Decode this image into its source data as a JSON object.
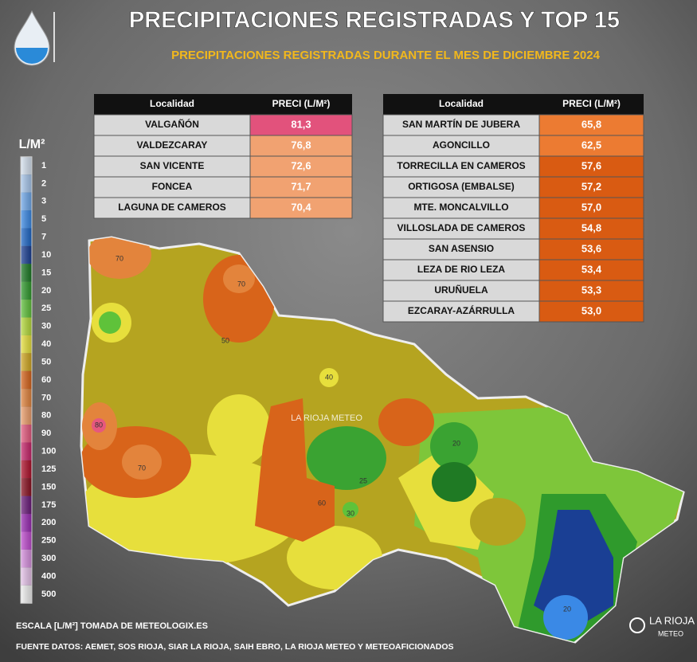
{
  "header": {
    "title": "PRECIPITACIONES REGISTRADAS Y TOP 15",
    "subtitle": "PRECIPITACIONES REGISTRADAS DURANTE EL MES DE DICIEMBRE 2024"
  },
  "table_left": {
    "columns": [
      "Localidad",
      "PRECI (L/M²)"
    ],
    "rows": [
      [
        "VALGAÑÓN",
        "81,3"
      ],
      [
        "VALDEZCARAY",
        "76,8"
      ],
      [
        "SAN VICENTE",
        "72,6"
      ],
      [
        "FONCEA",
        "71,7"
      ],
      [
        "LAGUNA DE CAMEROS",
        "70,4"
      ]
    ],
    "colors": [
      "#e2527c",
      "#f1a271",
      "#f1a271",
      "#f1a271",
      "#f1a271"
    ]
  },
  "table_right": {
    "columns": [
      "Localidad",
      "PRECI (L/M²)"
    ],
    "rows": [
      [
        "SAN MARTÍN DE JUBERA",
        "65,8"
      ],
      [
        "AGONCILLO",
        "62,5"
      ],
      [
        "TORRECILLA EN CAMEROS",
        "57,6"
      ],
      [
        "ORTIGOSA (EMBALSE)",
        "57,2"
      ],
      [
        "MTE. MONCALVILLO",
        "57,0"
      ],
      [
        "VILLOSLADA DE CAMEROS",
        "54,8"
      ],
      [
        "SAN ASENSIO",
        "53,6"
      ],
      [
        "LEZA DE RIO LEZA",
        "53,4"
      ],
      [
        "URUÑUELA",
        "53,3"
      ],
      [
        "EZCARAY-AZÁRRULLA",
        "53,0"
      ]
    ],
    "colors": [
      "#ec7b32",
      "#ec7b32",
      "#d95b12",
      "#d95b12",
      "#d95b12",
      "#d95b12",
      "#d95b12",
      "#d95b12",
      "#d95b12",
      "#d95b12"
    ]
  },
  "scale": {
    "title": "L/M²",
    "levels": [
      1,
      2,
      3,
      5,
      7,
      10,
      15,
      20,
      25,
      30,
      40,
      50,
      60,
      70,
      80,
      90,
      100,
      125,
      150,
      175,
      200,
      250,
      300,
      400,
      500
    ],
    "colors": [
      "#d8e4f2",
      "#a9c8ee",
      "#6fa9ec",
      "#3a89e6",
      "#1e68c8",
      "#1a3f94",
      "#1c7a24",
      "#2f9a2c",
      "#5fc23a",
      "#b6dc3a",
      "#e8e23a",
      "#d2a820",
      "#d8641a",
      "#e3843c",
      "#ee9e6a",
      "#e6587e",
      "#c8246a",
      "#b0102a",
      "#8a1020",
      "#6a1a7a",
      "#9a2ab4",
      "#c04ad0",
      "#d890e0",
      "#e8c4ec",
      "#f2f2f2"
    ]
  },
  "map": {
    "watermark": "LA RIOJA METEO",
    "contour_labels": [
      70,
      70,
      50,
      40,
      80,
      70,
      60,
      20,
      25,
      30,
      20
    ]
  },
  "footer": {
    "scale_note": "ESCALA [L/M²] TOMADA DE METEOLOGIX.ES",
    "sources": "FUENTE DATOS: AEMET, SOS RIOJA, SIAR LA RIOJA, SAIH EBRO, LA RIOJA METEO  Y METEOAFICIONADOS",
    "logo_top": "LA RIOJA",
    "logo_bottom": "METEO"
  }
}
